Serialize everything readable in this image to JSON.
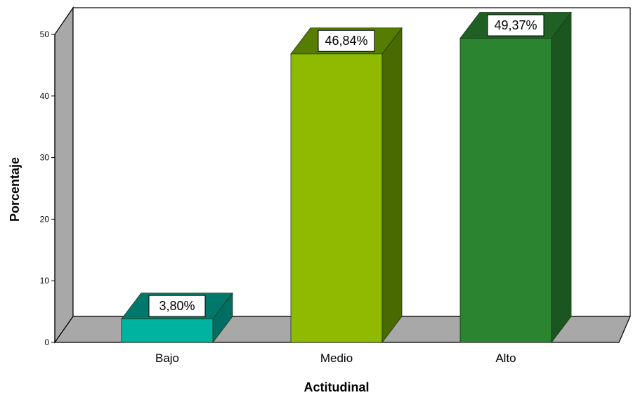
{
  "chart_data": {
    "type": "bar",
    "style": "3d",
    "categories": [
      "Bajo",
      "Medio",
      "Alto"
    ],
    "values": [
      3.8,
      46.84,
      49.37
    ],
    "data_labels": [
      "3,80%",
      "46,84%",
      "49,37%"
    ],
    "xlabel": "Actitudinal",
    "ylabel": "Porcentaje",
    "ylim": [
      0,
      50
    ],
    "yticks": [
      0,
      10,
      20,
      30,
      40,
      50
    ],
    "grid": false,
    "legend": "none",
    "colors": {
      "bars": [
        {
          "front": "#00b3a0",
          "side": "#006e64",
          "top": "#00796c"
        },
        {
          "front": "#8fba00",
          "side": "#486a00",
          "top": "#567d00"
        },
        {
          "front": "#2b8430",
          "side": "#1b5620",
          "top": "#1f6124"
        }
      ],
      "floor": "#a8a8a8",
      "wall": "#a8a8a8",
      "label_box": "#ffffff",
      "outline": "#000000"
    }
  }
}
